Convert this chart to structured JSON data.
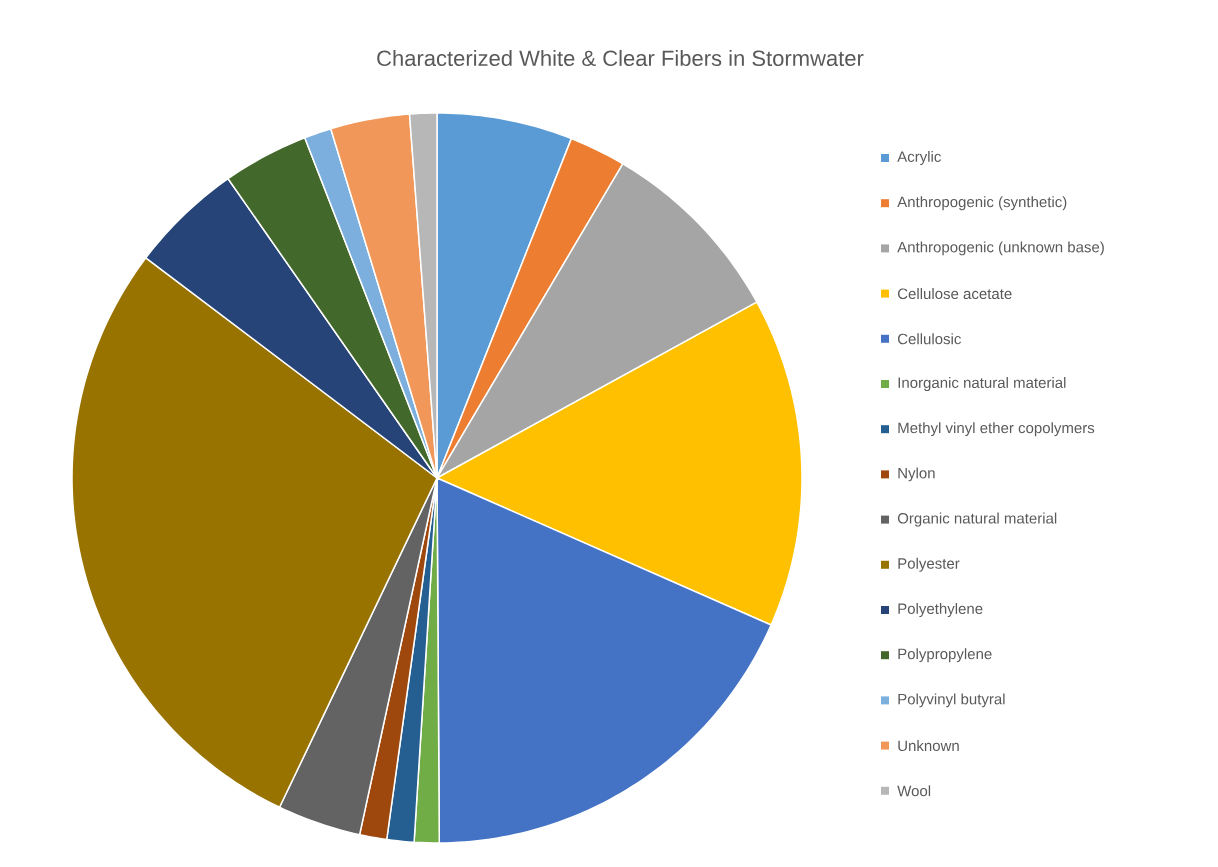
{
  "chart_data": {
    "type": "pie",
    "title": "Characterized White & Clear Fibers in Stormwater",
    "categories": [
      "Acrylic",
      "Anthropogenic (synthetic)",
      "Anthropogenic (unknown base)",
      "Cellulose acetate",
      "Cellulosic",
      "Inorganic natural material",
      "Methyl vinyl ether copolymers",
      "Nylon",
      "Organic natural material",
      "Polyester",
      "Polyethylene",
      "Polypropylene",
      "Polyvinyl butyral",
      "Unknown",
      "Wool"
    ],
    "values": [
      6.0,
      2.5,
      8.5,
      14.6,
      18.3,
      1.1,
      1.2,
      1.2,
      3.7,
      28.2,
      5.0,
      3.8,
      1.2,
      3.5,
      1.2
    ],
    "colors": [
      "#5b9bd5",
      "#ed7d31",
      "#a5a5a5",
      "#ffc000",
      "#4472c4",
      "#70ad47",
      "#255e91",
      "#9e480e",
      "#636363",
      "#997300",
      "#264478",
      "#43682b",
      "#7cafdd",
      "#f1975a",
      "#b7b7b7"
    ],
    "legend": "right"
  }
}
